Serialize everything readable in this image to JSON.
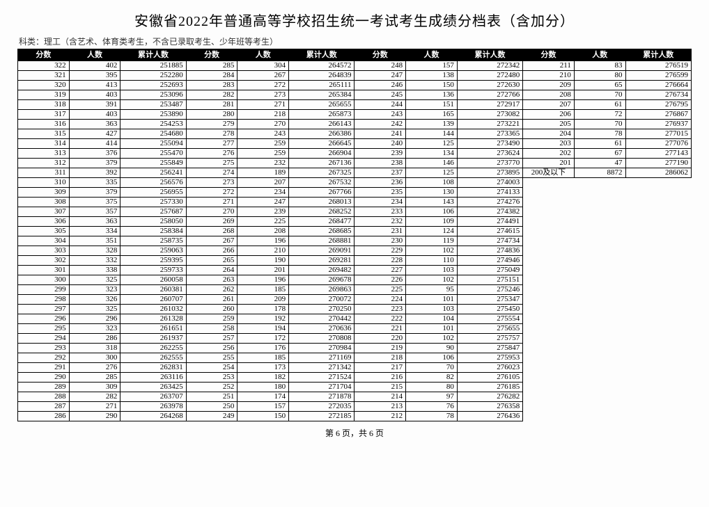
{
  "title": "安徽省2022年普通高等学校招生统一考试考生成绩分档表（含加分）",
  "subtitle": "科类：理工（含艺术、体育类考生，不含已录取考生、少年班等考生）",
  "footer": "第 6 页，共 6 页",
  "headers": [
    "分数",
    "人数",
    "累计人数"
  ],
  "special_label": "200及以下",
  "group1": [
    [
      322,
      402,
      251885
    ],
    [
      321,
      395,
      252280
    ],
    [
      320,
      413,
      252693
    ],
    [
      319,
      403,
      253096
    ],
    [
      318,
      391,
      253487
    ],
    [
      317,
      403,
      253890
    ],
    [
      316,
      363,
      254253
    ],
    [
      315,
      427,
      254680
    ],
    [
      314,
      414,
      255094
    ],
    [
      313,
      376,
      255470
    ],
    [
      312,
      379,
      255849
    ],
    [
      311,
      392,
      256241
    ],
    [
      310,
      335,
      256576
    ],
    [
      309,
      379,
      256955
    ],
    [
      308,
      375,
      257330
    ],
    [
      307,
      357,
      257687
    ],
    [
      306,
      363,
      258050
    ],
    [
      305,
      334,
      258384
    ],
    [
      304,
      351,
      258735
    ],
    [
      303,
      328,
      259063
    ],
    [
      302,
      332,
      259395
    ],
    [
      301,
      338,
      259733
    ],
    [
      300,
      325,
      260058
    ],
    [
      299,
      323,
      260381
    ],
    [
      298,
      326,
      260707
    ],
    [
      297,
      325,
      261032
    ],
    [
      296,
      296,
      261328
    ],
    [
      295,
      323,
      261651
    ],
    [
      294,
      286,
      261937
    ],
    [
      293,
      318,
      262255
    ],
    [
      292,
      300,
      262555
    ],
    [
      291,
      276,
      262831
    ],
    [
      290,
      285,
      263116
    ],
    [
      289,
      309,
      263425
    ],
    [
      288,
      282,
      263707
    ],
    [
      287,
      271,
      263978
    ],
    [
      286,
      290,
      264268
    ]
  ],
  "group2": [
    [
      285,
      304,
      264572
    ],
    [
      284,
      267,
      264839
    ],
    [
      283,
      272,
      265111
    ],
    [
      282,
      273,
      265384
    ],
    [
      281,
      271,
      265655
    ],
    [
      280,
      218,
      265873
    ],
    [
      279,
      270,
      266143
    ],
    [
      278,
      243,
      266386
    ],
    [
      277,
      259,
      266645
    ],
    [
      276,
      259,
      266904
    ],
    [
      275,
      232,
      267136
    ],
    [
      274,
      189,
      267325
    ],
    [
      273,
      207,
      267532
    ],
    [
      272,
      234,
      267766
    ],
    [
      271,
      247,
      268013
    ],
    [
      270,
      239,
      268252
    ],
    [
      269,
      225,
      268477
    ],
    [
      268,
      208,
      268685
    ],
    [
      267,
      196,
      268881
    ],
    [
      266,
      210,
      269091
    ],
    [
      265,
      190,
      269281
    ],
    [
      264,
      201,
      269482
    ],
    [
      263,
      196,
      269678
    ],
    [
      262,
      185,
      269863
    ],
    [
      261,
      209,
      270072
    ],
    [
      260,
      178,
      270250
    ],
    [
      259,
      192,
      270442
    ],
    [
      258,
      194,
      270636
    ],
    [
      257,
      172,
      270808
    ],
    [
      256,
      176,
      270984
    ],
    [
      255,
      185,
      271169
    ],
    [
      254,
      173,
      271342
    ],
    [
      253,
      182,
      271524
    ],
    [
      252,
      180,
      271704
    ],
    [
      251,
      174,
      271878
    ],
    [
      250,
      157,
      272035
    ],
    [
      249,
      150,
      272185
    ]
  ],
  "group3": [
    [
      248,
      157,
      272342
    ],
    [
      247,
      138,
      272480
    ],
    [
      246,
      150,
      272630
    ],
    [
      245,
      136,
      272766
    ],
    [
      244,
      151,
      272917
    ],
    [
      243,
      165,
      273082
    ],
    [
      242,
      139,
      273221
    ],
    [
      241,
      144,
      273365
    ],
    [
      240,
      125,
      273490
    ],
    [
      239,
      134,
      273624
    ],
    [
      238,
      146,
      273770
    ],
    [
      237,
      125,
      273895
    ],
    [
      236,
      108,
      274003
    ],
    [
      235,
      130,
      274133
    ],
    [
      234,
      143,
      274276
    ],
    [
      233,
      106,
      274382
    ],
    [
      232,
      109,
      274491
    ],
    [
      231,
      124,
      274615
    ],
    [
      230,
      119,
      274734
    ],
    [
      229,
      102,
      274836
    ],
    [
      228,
      110,
      274946
    ],
    [
      227,
      103,
      275049
    ],
    [
      226,
      102,
      275151
    ],
    [
      225,
      95,
      275246
    ],
    [
      224,
      101,
      275347
    ],
    [
      223,
      103,
      275450
    ],
    [
      222,
      104,
      275554
    ],
    [
      221,
      101,
      275655
    ],
    [
      220,
      102,
      275757
    ],
    [
      219,
      90,
      275847
    ],
    [
      218,
      106,
      275953
    ],
    [
      217,
      70,
      276023
    ],
    [
      216,
      82,
      276105
    ],
    [
      215,
      80,
      276185
    ],
    [
      214,
      97,
      276282
    ],
    [
      213,
      76,
      276358
    ],
    [
      212,
      78,
      276436
    ]
  ],
  "group4": [
    [
      211,
      83,
      276519
    ],
    [
      210,
      80,
      276599
    ],
    [
      209,
      65,
      276664
    ],
    [
      208,
      70,
      276734
    ],
    [
      207,
      61,
      276795
    ],
    [
      206,
      72,
      276867
    ],
    [
      205,
      70,
      276937
    ],
    [
      204,
      78,
      277015
    ],
    [
      203,
      61,
      277076
    ],
    [
      202,
      67,
      277143
    ],
    [
      201,
      47,
      277190
    ],
    [
      "200及以下",
      8872,
      286062
    ]
  ]
}
